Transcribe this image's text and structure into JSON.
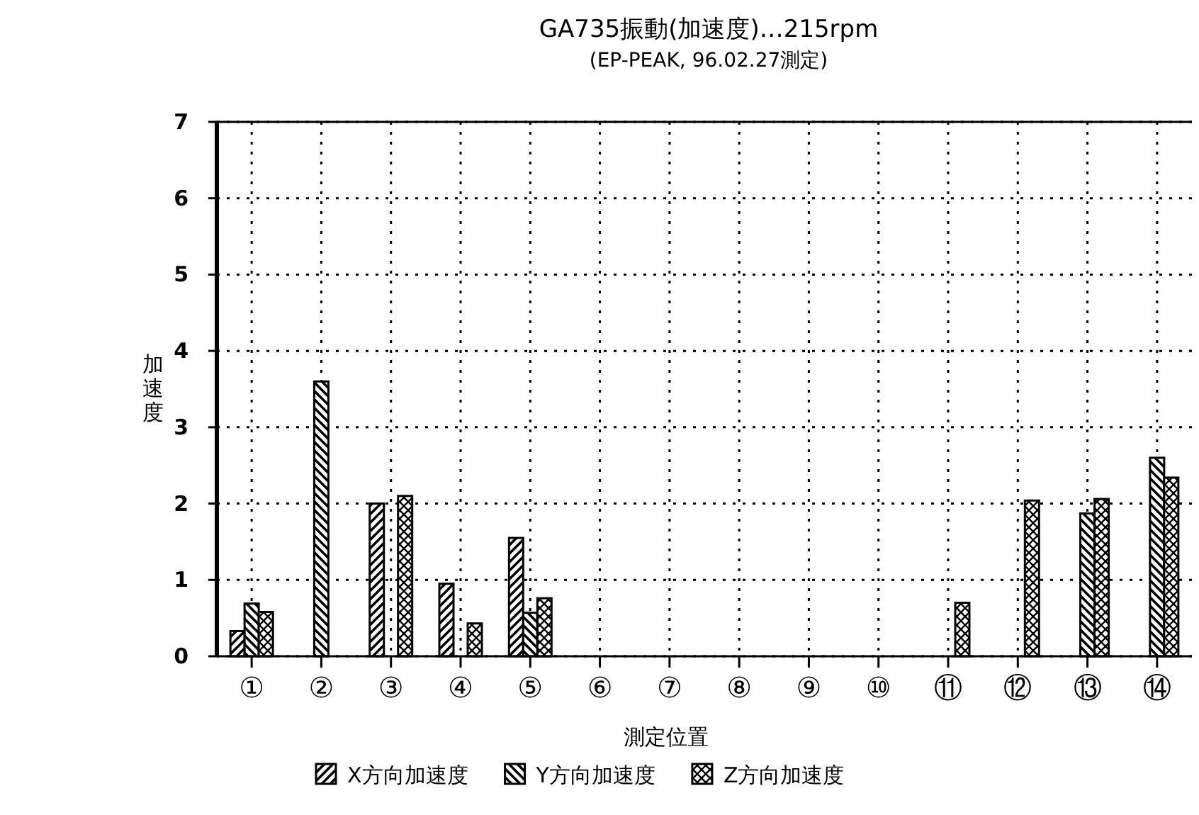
{
  "chart_data": {
    "type": "bar",
    "title": "GA735振動(加速度)…215rpm",
    "subtitle": "(EP-PEAK, 96.02.27測定)",
    "xlabel": "測定位置",
    "ylabel": "加速度",
    "categories": [
      "①",
      "②",
      "③",
      "④",
      "⑤",
      "⑥",
      "⑦",
      "⑧",
      "⑨",
      "⑩",
      "⑪",
      "⑫",
      "⑬",
      "⑭"
    ],
    "series": [
      {
        "name": "X方向加速度",
        "color": "#000000",
        "values": [
          0.33,
          null,
          2.0,
          0.95,
          1.55,
          null,
          null,
          null,
          null,
          null,
          null,
          null,
          null,
          null
        ]
      },
      {
        "name": "Y方向加速度",
        "color": "#000000",
        "values": [
          0.69,
          3.6,
          null,
          null,
          0.57,
          null,
          null,
          null,
          null,
          null,
          null,
          null,
          1.87,
          2.6
        ]
      },
      {
        "name": "Z方向加速度",
        "color": "#000000",
        "values": [
          0.58,
          null,
          2.1,
          0.43,
          0.76,
          null,
          null,
          null,
          null,
          null,
          0.7,
          2.04,
          2.06,
          2.34
        ]
      }
    ],
    "ylim": [
      0,
      7
    ],
    "yticks": [
      0,
      1,
      2,
      3,
      4,
      5,
      6,
      7
    ],
    "grid": true,
    "legend": "bottom"
  }
}
